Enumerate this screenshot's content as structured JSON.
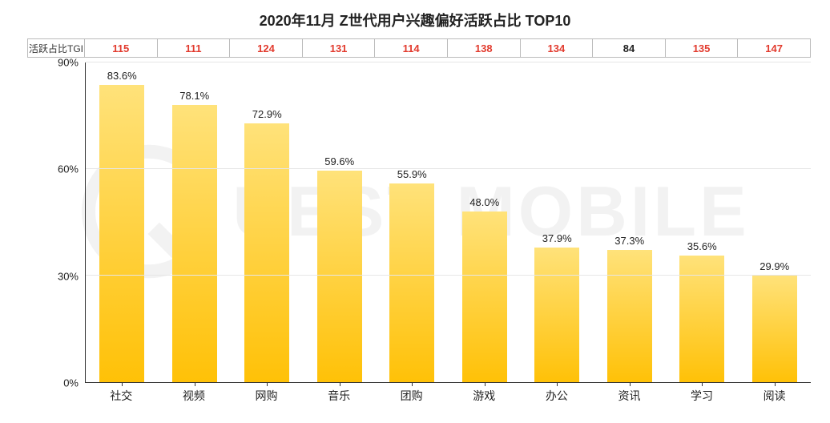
{
  "title": "2020年11月 Z世代用户兴趣偏好活跃占比 TOP10",
  "watermark_text": "UEST MOBILE",
  "tgi": {
    "label": "活跃占比TGI",
    "values": [
      115,
      111,
      124,
      131,
      114,
      138,
      134,
      84,
      135,
      147
    ],
    "highlight_color": "#e23b2e",
    "normal_color": "#222222",
    "highlight_threshold": 100,
    "border_color": "#bbbbbb",
    "fontsize": 13
  },
  "chart": {
    "type": "bar",
    "categories": [
      "社交",
      "视频",
      "网购",
      "音乐",
      "团购",
      "游戏",
      "办公",
      "资讯",
      "学习",
      "阅读"
    ],
    "values": [
      83.6,
      78.1,
      72.9,
      59.6,
      55.9,
      48.0,
      37.9,
      37.3,
      35.6,
      29.9
    ],
    "value_suffix": "%",
    "bar_gradient_top": "#ffe27a",
    "bar_gradient_bottom": "#ffc107",
    "bar_width_ratio": 0.62,
    "ylim": [
      0,
      90
    ],
    "yticks": [
      0,
      30,
      60,
      90
    ],
    "ytick_suffix": "%",
    "grid_color": "#e6e6e6",
    "axis_color": "#333333",
    "background_color": "#ffffff",
    "label_fontsize": 13,
    "axis_fontsize": 13,
    "category_fontsize": 14,
    "title_fontsize": 18
  }
}
